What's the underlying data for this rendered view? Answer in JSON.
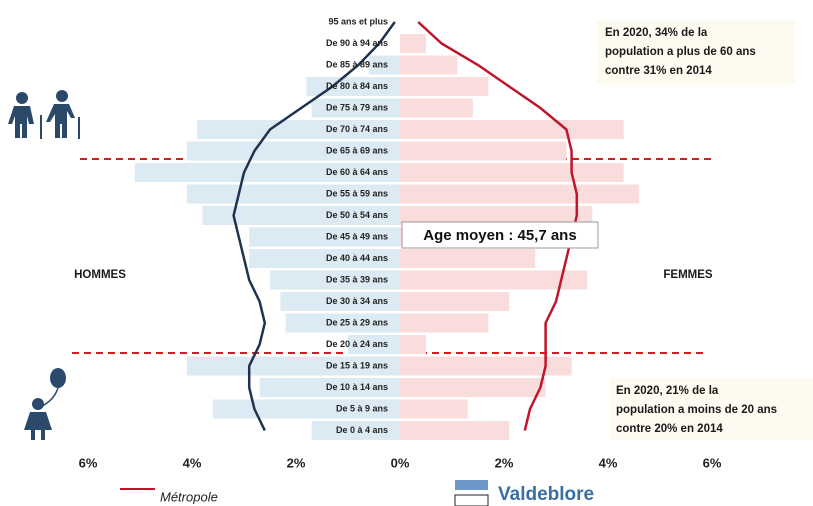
{
  "chart_data": {
    "type": "pyramid",
    "categories": [
      "95 ans et plus",
      "De 90 à 94 ans",
      "De 85 à 89 ans",
      "De 80 à 84 ans",
      "De 75 à 79 ans",
      "De 70 à 74 ans",
      "De 65 à 69 ans",
      "De 60 à 64 ans",
      "De 55 à 59 ans",
      "De 50 à 54 ans",
      "De 45 à 49 ans",
      "De 40 à 44 ans",
      "De 35 à 39 ans",
      "De 30 à 34 ans",
      "De 25 à 29 ans",
      "De 20 à 24 ans",
      "De 15 à 19 ans",
      "De 10 à 14 ans",
      "De 5 à 9 ans",
      "De 0 à 4 ans"
    ],
    "sides": [
      "HOMMES",
      "FEMMES"
    ],
    "series": [
      {
        "name": "Valdeblore",
        "style": "bar",
        "legend_color": "#6b97c9",
        "men_color": "#dcebf3",
        "women_color": "#f9dcdc",
        "men": [
          0,
          0,
          0.6,
          1.8,
          1.7,
          3.9,
          4.1,
          5.1,
          4.1,
          3.8,
          2.9,
          2.9,
          2.5,
          2.3,
          2.2,
          1.0,
          4.1,
          2.7,
          3.6,
          1.7
        ],
        "women": [
          0,
          0.5,
          1.1,
          1.7,
          1.4,
          4.3,
          3.2,
          4.3,
          4.6,
          3.7,
          3.5,
          2.6,
          3.6,
          2.1,
          1.7,
          0.5,
          3.3,
          2.8,
          1.3,
          2.1
        ]
      },
      {
        "name": "Métropole",
        "style": "line",
        "men_color": "#1f3350",
        "women_color": "#c0142a",
        "men": [
          0.1,
          0.4,
          0.8,
          1.3,
          1.9,
          2.5,
          2.8,
          3.0,
          3.1,
          3.2,
          3.1,
          3.0,
          2.9,
          2.7,
          2.6,
          2.7,
          2.9,
          2.9,
          2.8,
          2.6
        ],
        "women": [
          0.35,
          0.8,
          1.5,
          2.1,
          2.7,
          3.2,
          3.3,
          3.3,
          3.4,
          3.4,
          3.3,
          3.2,
          3.1,
          3.0,
          2.8,
          2.8,
          2.8,
          2.7,
          2.5,
          2.4
        ]
      }
    ],
    "xlim": [
      -6,
      6
    ],
    "xticks": [
      {
        "value": -6,
        "label": "6%"
      },
      {
        "value": -4,
        "label": "4%"
      },
      {
        "value": -2,
        "label": "2%"
      },
      {
        "value": 0,
        "label": "0%"
      },
      {
        "value": 2,
        "label": "2%"
      },
      {
        "value": 4,
        "label": "4%"
      },
      {
        "value": 6,
        "label": "6%"
      }
    ],
    "annotations": {
      "top": [
        "En 2020,  34% de la",
        "population a plus de 60 ans",
        "contre 31% en 2014"
      ],
      "middle": "Age moyen : 45,7 ans",
      "bottom": [
        "En 2020, 21% de la",
        "population a moins de 20 ans",
        "contre 20% en 2014"
      ]
    }
  }
}
